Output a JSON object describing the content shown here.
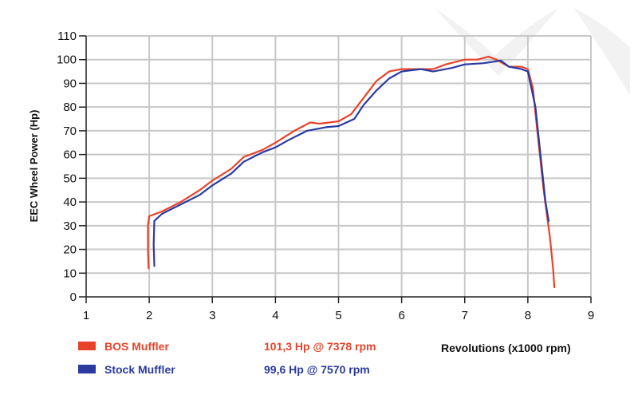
{
  "chart_data": {
    "type": "line",
    "xlabel": "Revolutions (x1000 rpm)",
    "ylabel": "EEC Wheel Power (Hp)",
    "xlim": [
      1,
      9
    ],
    "ylim": [
      0,
      110
    ],
    "x_ticks": [
      1,
      2,
      3,
      4,
      5,
      6,
      7,
      8,
      9
    ],
    "y_ticks": [
      0,
      10,
      20,
      30,
      40,
      50,
      60,
      70,
      80,
      90,
      100,
      110
    ],
    "grid": true,
    "legend_position": "bottom-left",
    "series": [
      {
        "name": "BOS Muffler",
        "peak_label": "101,3 Hp @ 7378 rpm",
        "color": "#e8432a",
        "points": [
          [
            1.99,
            12
          ],
          [
            1.98,
            20
          ],
          [
            1.98,
            30
          ],
          [
            2.0,
            34
          ],
          [
            2.2,
            36
          ],
          [
            2.5,
            40
          ],
          [
            2.8,
            45
          ],
          [
            3.0,
            49
          ],
          [
            3.3,
            54
          ],
          [
            3.5,
            59
          ],
          [
            3.8,
            62
          ],
          [
            4.0,
            65
          ],
          [
            4.3,
            70
          ],
          [
            4.55,
            73.5
          ],
          [
            4.7,
            73
          ],
          [
            5.0,
            74
          ],
          [
            5.2,
            77
          ],
          [
            5.4,
            84
          ],
          [
            5.6,
            91
          ],
          [
            5.8,
            95
          ],
          [
            6.0,
            96
          ],
          [
            6.2,
            96
          ],
          [
            6.5,
            96
          ],
          [
            6.7,
            98
          ],
          [
            7.0,
            100
          ],
          [
            7.2,
            100
          ],
          [
            7.378,
            101.3
          ],
          [
            7.5,
            100
          ],
          [
            7.7,
            97
          ],
          [
            7.9,
            97
          ],
          [
            8.0,
            96
          ],
          [
            8.08,
            88
          ],
          [
            8.15,
            70
          ],
          [
            8.25,
            45
          ],
          [
            8.35,
            25
          ],
          [
            8.4,
            12
          ],
          [
            8.42,
            4
          ]
        ]
      },
      {
        "name": "Stock Muffler",
        "peak_label": "99,6 Hp @ 7570 rpm",
        "color": "#2a3aa0",
        "points": [
          [
            2.08,
            13
          ],
          [
            2.07,
            22
          ],
          [
            2.08,
            32
          ],
          [
            2.2,
            35
          ],
          [
            2.5,
            39
          ],
          [
            2.8,
            43
          ],
          [
            3.0,
            47
          ],
          [
            3.3,
            52
          ],
          [
            3.5,
            57
          ],
          [
            3.8,
            61
          ],
          [
            4.0,
            63
          ],
          [
            4.2,
            66
          ],
          [
            4.5,
            70
          ],
          [
            4.8,
            71.5
          ],
          [
            5.0,
            72
          ],
          [
            5.25,
            75
          ],
          [
            5.4,
            81
          ],
          [
            5.6,
            87
          ],
          [
            5.8,
            92
          ],
          [
            6.0,
            95
          ],
          [
            6.3,
            96
          ],
          [
            6.5,
            95
          ],
          [
            6.8,
            96.5
          ],
          [
            7.0,
            98
          ],
          [
            7.3,
            98.5
          ],
          [
            7.57,
            99.6
          ],
          [
            7.7,
            97
          ],
          [
            7.9,
            96
          ],
          [
            8.0,
            95
          ],
          [
            8.12,
            80
          ],
          [
            8.2,
            60
          ],
          [
            8.28,
            40
          ],
          [
            8.33,
            32
          ]
        ]
      }
    ]
  }
}
